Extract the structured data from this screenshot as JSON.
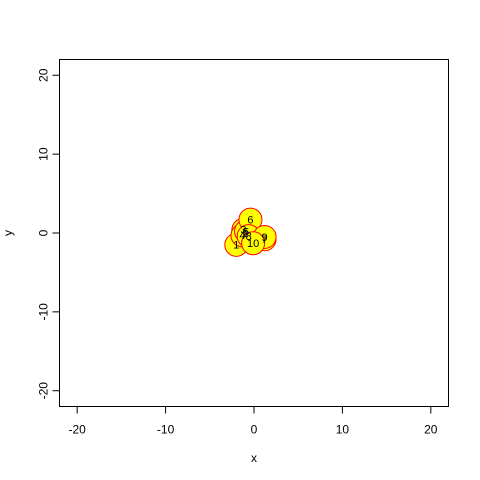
{
  "chart_data": {
    "type": "scatter",
    "title": "",
    "xlabel": "x",
    "ylabel": "y",
    "xlim": [
      -22,
      22
    ],
    "ylim": [
      -22,
      22
    ],
    "xticks": [
      -20,
      -10,
      0,
      10,
      20
    ],
    "yticks": [
      -20,
      -10,
      0,
      10,
      20
    ],
    "xtick_labels": [
      "-20",
      "-10",
      "0",
      "10",
      "20"
    ],
    "ytick_labels": [
      "-20",
      "-10",
      "0",
      "10",
      "20"
    ],
    "grid": false,
    "marker": {
      "shape": "circle",
      "fill": "#FFFF00",
      "stroke": "#FF0000",
      "label_color": "#000000"
    },
    "points": [
      {
        "label": "1",
        "x": -2.0,
        "y": -1.5
      },
      {
        "label": "2",
        "x": -1.0,
        "y": 0.0
      },
      {
        "label": "3",
        "x": -1.2,
        "y": 0.4
      },
      {
        "label": "4",
        "x": -1.3,
        "y": -0.3
      },
      {
        "label": "5",
        "x": -0.9,
        "y": 0.2
      },
      {
        "label": "6",
        "x": -0.4,
        "y": 1.7
      },
      {
        "label": "7",
        "x": 1.2,
        "y": -0.8
      },
      {
        "label": "8",
        "x": -0.6,
        "y": -0.4
      },
      {
        "label": "9",
        "x": 1.2,
        "y": -0.5
      },
      {
        "label": "10",
        "x": -0.1,
        "y": -1.3
      }
    ]
  }
}
